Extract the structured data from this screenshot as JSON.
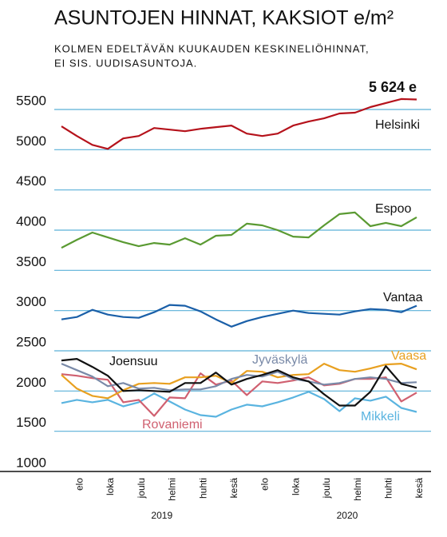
{
  "chart_data": {
    "type": "line",
    "title": "ASUNTOJEN HINNAT, KAKSIOT e/m²",
    "subtitle": [
      "KOLMEN EDELTÄVÄN KUUKAUDEN KESKINELIÖHINNAT,",
      "EI SIS. UUDISASUNTOJA."
    ],
    "annotation": "5 624 e",
    "categories": [
      null,
      "elo",
      null,
      "loka",
      null,
      "joulu",
      null,
      "helmi",
      null,
      "huhti",
      null,
      "kesä",
      null,
      "elo",
      null,
      "loka",
      null,
      "joulu",
      null,
      "helmi",
      null,
      "huhti",
      null,
      "kesä"
    ],
    "year_labels": [
      "2019",
      "2020"
    ],
    "ylim": [
      1000,
      5700
    ],
    "yticks": [
      1000,
      1500,
      2000,
      2500,
      3000,
      3500,
      4000,
      4500,
      5000,
      5500
    ],
    "grid": true,
    "series": [
      {
        "name": "Helsinki",
        "color": "#b5121b",
        "values": [
          5290,
          5170,
          5060,
          5010,
          5140,
          5170,
          5270,
          5250,
          5230,
          5260,
          5280,
          5300,
          5200,
          5170,
          5200,
          5300,
          5350,
          5390,
          5450,
          5460,
          5530,
          5580,
          5630,
          5624
        ]
      },
      {
        "name": "Espoo",
        "color": "#5a9a32",
        "values": [
          3780,
          3880,
          3970,
          3910,
          3850,
          3800,
          3840,
          3820,
          3900,
          3820,
          3930,
          3940,
          4080,
          4060,
          4000,
          3920,
          3910,
          4060,
          4200,
          4220,
          4050,
          4090,
          4050,
          4160
        ]
      },
      {
        "name": "Vantaa",
        "color": "#1a5fa8",
        "values": [
          2890,
          2920,
          3010,
          2950,
          2920,
          2910,
          2980,
          3070,
          3060,
          2990,
          2890,
          2800,
          2870,
          2920,
          2960,
          3000,
          2970,
          2960,
          2950,
          2990,
          3020,
          3010,
          2980,
          3060
        ]
      },
      {
        "name": "Joensuu",
        "color": "#111111",
        "values": [
          2380,
          2400,
          2300,
          2190,
          2000,
          2010,
          2000,
          1990,
          2100,
          2100,
          2230,
          2080,
          2150,
          2200,
          2260,
          2170,
          2120,
          1960,
          1820,
          1820,
          1990,
          2310,
          2090,
          2040
        ]
      },
      {
        "name": "Jyväskylä",
        "color": "#7a8aa8",
        "values": [
          2340,
          2260,
          2180,
          2060,
          2100,
          2030,
          2040,
          2010,
          2020,
          2020,
          2060,
          2150,
          2200,
          2180,
          2240,
          2150,
          2120,
          2080,
          2100,
          2150,
          2170,
          2150,
          2100,
          2110
        ]
      },
      {
        "name": "Vaasa",
        "color": "#e8a020",
        "values": [
          2200,
          2030,
          1940,
          1910,
          2010,
          2090,
          2100,
          2090,
          2170,
          2170,
          2190,
          2100,
          2250,
          2240,
          2170,
          2200,
          2210,
          2340,
          2260,
          2240,
          2280,
          2330,
          2340,
          2270
        ]
      },
      {
        "name": "Rovaniemi",
        "color": "#d06070",
        "values": [
          2210,
          2190,
          2160,
          2140,
          1860,
          1890,
          1690,
          1920,
          1910,
          2220,
          2080,
          2130,
          1950,
          2120,
          2100,
          2130,
          2170,
          2070,
          2090,
          2150,
          2150,
          2170,
          1870,
          1980
        ]
      },
      {
        "name": "Mikkeli",
        "color": "#5ab4e0",
        "values": [
          1850,
          1890,
          1860,
          1890,
          1810,
          1860,
          1970,
          1870,
          1770,
          1700,
          1680,
          1770,
          1830,
          1810,
          1860,
          1920,
          1990,
          1900,
          1750,
          1910,
          1880,
          1930,
          1790,
          1740
        ]
      }
    ]
  }
}
